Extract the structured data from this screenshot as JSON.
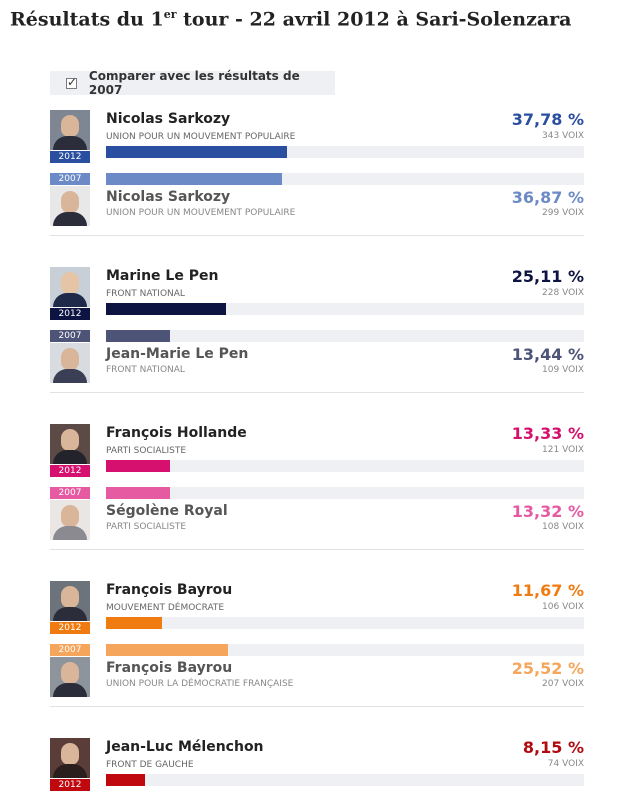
{
  "header": {
    "title_pre": "Résultats du 1",
    "title_sup": "er",
    "title_post": " tour - 22 avril 2012 à Sari-Solenzara"
  },
  "compare": {
    "label": "Comparer avec les résultats de 2007",
    "checked": true
  },
  "unit_voix": "VOIX",
  "candidates": [
    {
      "current": {
        "year": "2012",
        "name": "Nicolas Sarkozy",
        "party": "Union pour un mouvement populaire",
        "pct": "37,78 %",
        "pct_value": 37.78,
        "votes": "343 VOIX",
        "color": "#2a4fa0",
        "pct_color": "#2a4fa0"
      },
      "previous": {
        "year": "2007",
        "name": "Nicolas Sarkozy",
        "party": "Union pour un mouvement populaire",
        "pct": "36,87 %",
        "pct_value": 36.87,
        "votes": "299 VOIX",
        "color": "#6c8ac6",
        "pct_color": "#6c8ac6"
      }
    },
    {
      "current": {
        "year": "2012",
        "name": "Marine Le Pen",
        "party": "Front national",
        "pct": "25,11 %",
        "pct_value": 25.11,
        "votes": "228 VOIX",
        "color": "#0d1442",
        "pct_color": "#0d1442"
      },
      "previous": {
        "year": "2007",
        "name": "Jean-Marie Le Pen",
        "party": "Front national",
        "pct": "13,44 %",
        "pct_value": 13.44,
        "votes": "109 VOIX",
        "color": "#4e5478",
        "pct_color": "#4e5478"
      }
    },
    {
      "current": {
        "year": "2012",
        "name": "François Hollande",
        "party": "Parti socialiste",
        "pct": "13,33 %",
        "pct_value": 13.33,
        "votes": "121 VOIX",
        "color": "#d6106e",
        "pct_color": "#d6106e"
      },
      "previous": {
        "year": "2007",
        "name": "Ségolène Royal",
        "party": "Parti socialiste",
        "pct": "13,32 %",
        "pct_value": 13.32,
        "votes": "108 VOIX",
        "color": "#e55aa1",
        "pct_color": "#e55aa1"
      }
    },
    {
      "current": {
        "year": "2012",
        "name": "François Bayrou",
        "party": "Mouvement démocrate",
        "pct": "11,67 %",
        "pct_value": 11.67,
        "votes": "106 VOIX",
        "color": "#f07b10",
        "pct_color": "#f07b10"
      },
      "previous": {
        "year": "2007",
        "name": "François Bayrou",
        "party": "Union pour la démocratie française",
        "pct": "25,52 %",
        "pct_value": 25.52,
        "votes": "207 VOIX",
        "color": "#f5a55c",
        "pct_color": "#f5a55c"
      }
    },
    {
      "current": {
        "year": "2012",
        "name": "Jean-Luc Mélenchon",
        "party": "Front de gauche",
        "pct": "8,15 %",
        "pct_value": 8.15,
        "votes": "74 VOIX",
        "color": "#c0090f",
        "pct_color": "#b00b10"
      }
    }
  ]
}
